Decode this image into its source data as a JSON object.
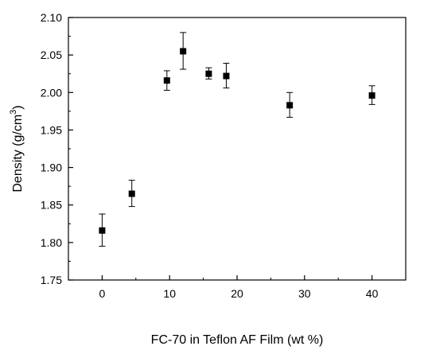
{
  "chart_data": {
    "type": "scatter",
    "title": "",
    "xlabel": "FC-70 in Teflon AF Film (wt %)",
    "ylabel": {
      "main": "Density (g/cm",
      "superscript": "3",
      "close": ")"
    },
    "xlim": [
      -5,
      45
    ],
    "ylim": [
      1.75,
      2.1
    ],
    "x_ticks": [
      0,
      10,
      20,
      30,
      40
    ],
    "x_tick_labels": [
      "0",
      "10",
      "20",
      "30",
      "40"
    ],
    "y_ticks": [
      1.75,
      1.8,
      1.85,
      1.9,
      1.95,
      2.0,
      2.05,
      2.1
    ],
    "y_tick_labels": [
      "1.75",
      "1.80",
      "1.85",
      "1.90",
      "1.95",
      "2.00",
      "2.05",
      "2.10"
    ],
    "grid": false,
    "legend": "none",
    "marker": "square",
    "marker_color": "#000000",
    "points": [
      {
        "x": 0,
        "y": 1.816,
        "err_low": 1.795,
        "err_high": 1.838
      },
      {
        "x": 4.4,
        "y": 1.865,
        "err_low": 1.848,
        "err_high": 1.883
      },
      {
        "x": 9.6,
        "y": 2.016,
        "err_low": 2.003,
        "err_high": 2.029
      },
      {
        "x": 12,
        "y": 2.055,
        "err_low": 2.031,
        "err_high": 2.08
      },
      {
        "x": 15.8,
        "y": 2.025,
        "err_low": 2.018,
        "err_high": 2.033
      },
      {
        "x": 18.4,
        "y": 2.022,
        "err_low": 2.006,
        "err_high": 2.039
      },
      {
        "x": 27.8,
        "y": 1.983,
        "err_low": 1.967,
        "err_high": 2.0
      },
      {
        "x": 40,
        "y": 1.996,
        "err_low": 1.984,
        "err_high": 2.009
      }
    ]
  }
}
